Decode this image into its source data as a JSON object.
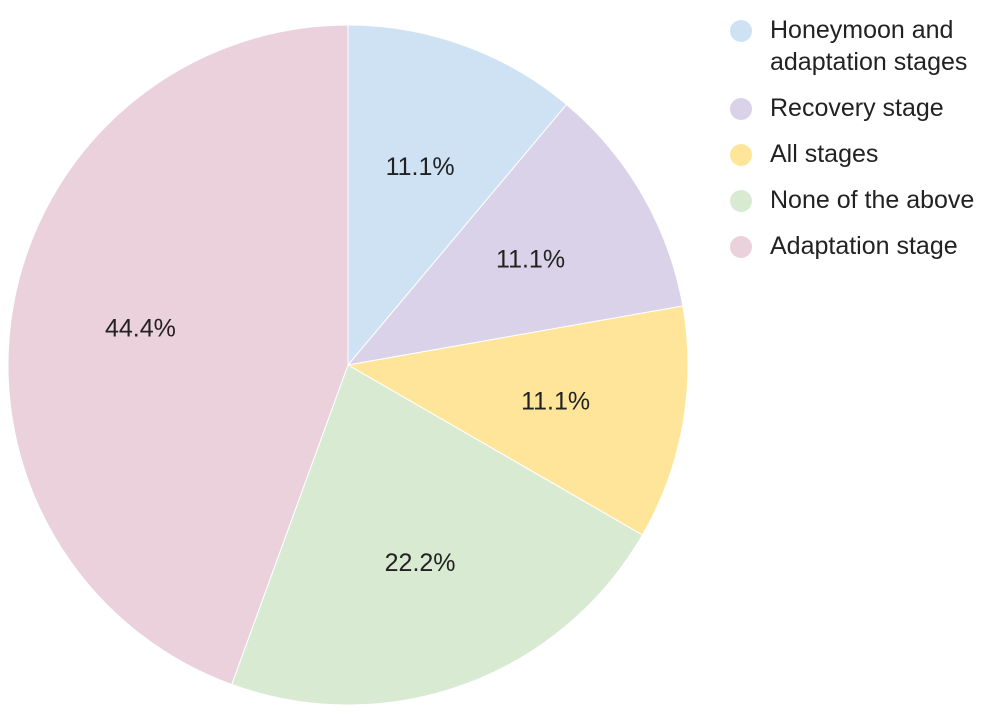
{
  "chart_data": {
    "type": "pie",
    "title": "",
    "legend_position": "right",
    "slices": [
      {
        "label": "Honeymoon and\nadaptation stages",
        "value": 11.1,
        "display": "11.1%",
        "color": "#cfe2f3"
      },
      {
        "label": "Recovery stage",
        "value": 11.1,
        "display": "11.1%",
        "color": "#d9d2e9"
      },
      {
        "label": "All stages",
        "value": 11.1,
        "display": "11.1%",
        "color": "#ffe599"
      },
      {
        "label": "None of the above",
        "value": 22.2,
        "display": "22.2%",
        "color": "#d9ead3"
      },
      {
        "label": "Adaptation stage",
        "value": 44.4,
        "display": "44.4%",
        "color": "#ead1dc"
      }
    ]
  }
}
